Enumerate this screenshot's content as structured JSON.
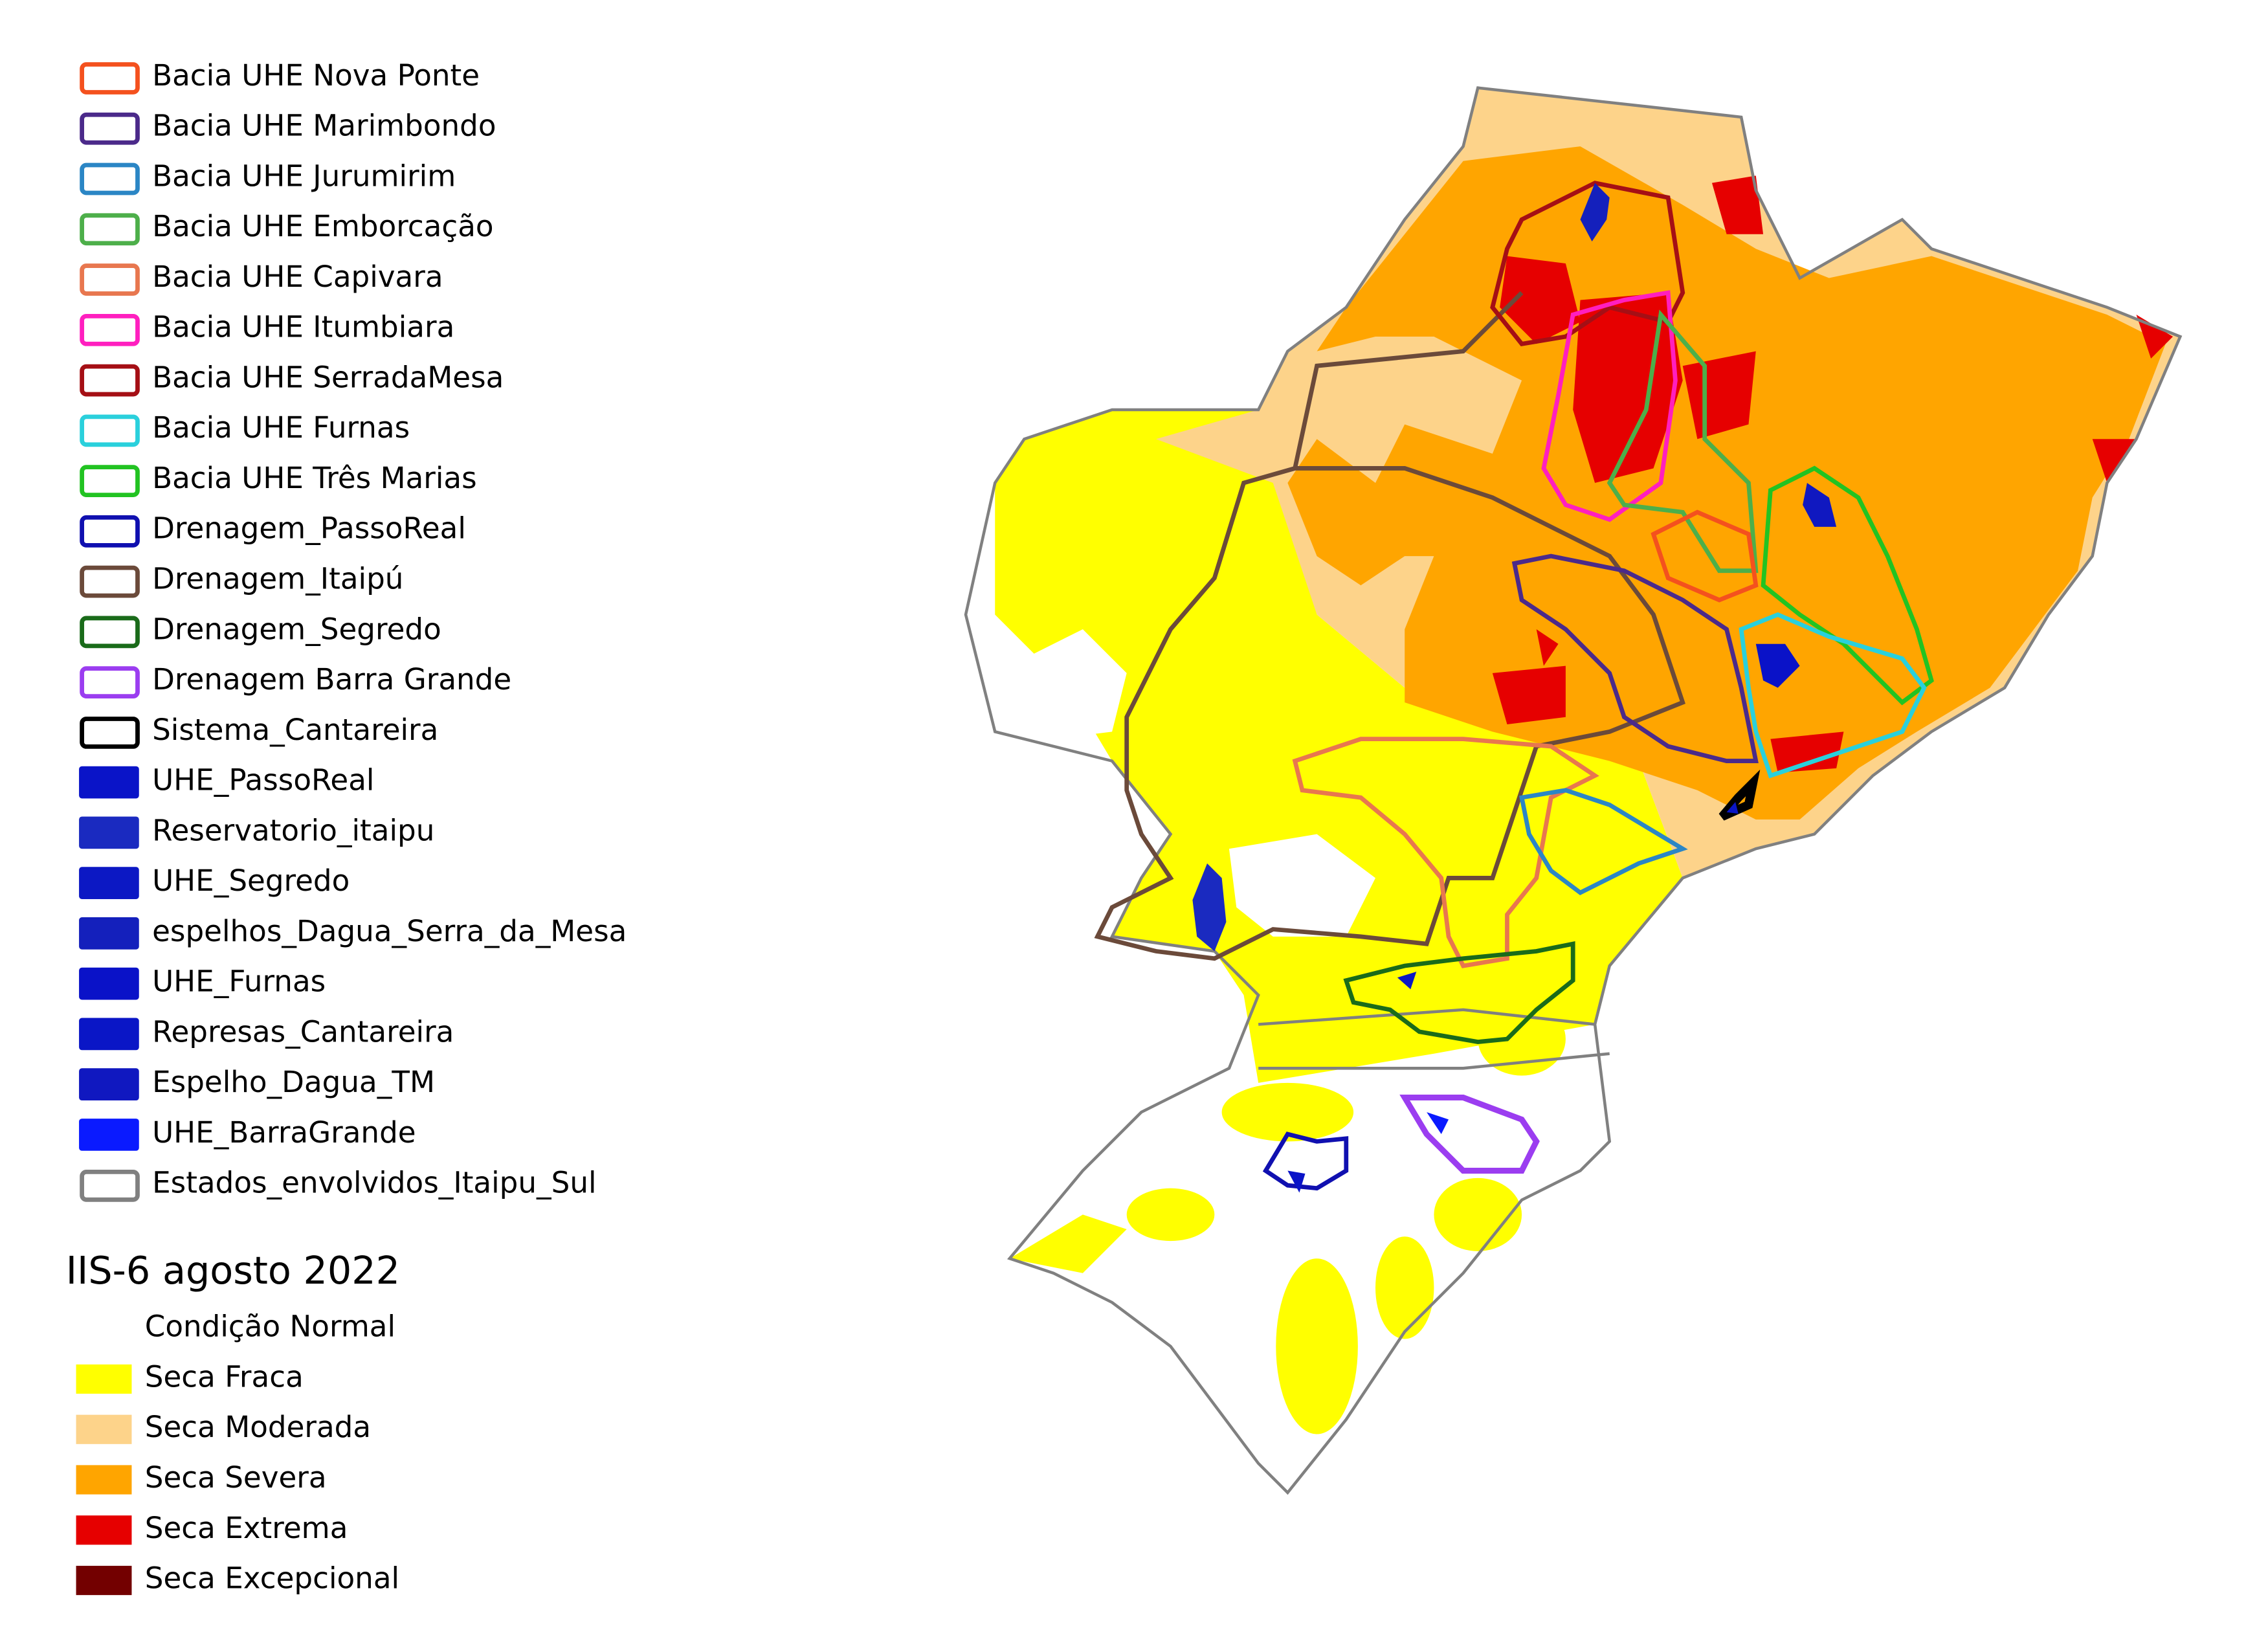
{
  "legend": {
    "items": [
      {
        "label": "Bacia UHE Nova Ponte",
        "color": "#f4511e",
        "style": "outline"
      },
      {
        "label": "Bacia UHE Marimbondo",
        "color": "#4b2a8a",
        "style": "outline"
      },
      {
        "label": "Bacia UHE Jurumirim",
        "color": "#2b86c5",
        "style": "outline"
      },
      {
        "label": "Bacia UHE Emborcação",
        "color": "#4daf4a",
        "style": "outline"
      },
      {
        "label": "Bacia UHE Capivara",
        "color": "#e8774f",
        "style": "outline"
      },
      {
        "label": "Bacia UHE Itumbiara",
        "color": "#ff1fbf",
        "style": "outline"
      },
      {
        "label": "Bacia UHE SerradaMesa",
        "color": "#a50f15",
        "style": "outline"
      },
      {
        "label": "Bacia UHE Furnas",
        "color": "#2ad0dc",
        "style": "outline"
      },
      {
        "label": "Bacia UHE Três Marias",
        "color": "#22c322",
        "style": "outline"
      },
      {
        "label": "Drenagem_PassoReal",
        "color": "#1010b0",
        "style": "outline"
      },
      {
        "label": "Drenagem_Itaipú",
        "color": "#6b4a3a",
        "style": "outline"
      },
      {
        "label": "Drenagem_Segredo",
        "color": "#1a6b1a",
        "style": "outline"
      },
      {
        "label": "Drenagem Barra Grande",
        "color": "#9b3df0",
        "style": "outline"
      },
      {
        "label": "Sistema_Cantareira",
        "color": "#000000",
        "style": "outline"
      },
      {
        "label": "UHE_PassoReal",
        "color": "#0a14c8",
        "style": "fill"
      },
      {
        "label": "Reservatorio_itaipu",
        "color": "#1a2ac0",
        "style": "fill"
      },
      {
        "label": "UHE_Segredo",
        "color": "#0c18c4",
        "style": "fill"
      },
      {
        "label": "espelhos_Dagua_Serra_da_Mesa",
        "color": "#1420bc",
        "style": "fill"
      },
      {
        "label": "UHE_Furnas",
        "color": "#0a12c8",
        "style": "fill"
      },
      {
        "label": "Represas_Cantareira",
        "color": "#0a16c6",
        "style": "fill"
      },
      {
        "label": "Espelho_Dagua_TM",
        "color": "#1018c0",
        "style": "fill"
      },
      {
        "label": "UHE_BarraGrande",
        "color": "#0a1aff",
        "style": "fill"
      },
      {
        "label": "Estados_envolvidos_Itaipu_Sul",
        "color": "#808080",
        "style": "outline"
      }
    ]
  },
  "drought_legend": {
    "title": "IIS-6 agosto 2022",
    "classes": [
      {
        "label": "Condição Normal",
        "color": "#ffffff"
      },
      {
        "label": "Seca Fraca",
        "color": "#ffff00"
      },
      {
        "label": "Seca Moderada",
        "color": "#fdd38a"
      },
      {
        "label": "Seca Severa",
        "color": "#ffa500"
      },
      {
        "label": "Seca Extrema",
        "color": "#e60000"
      },
      {
        "label": "Seca Excepcional",
        "color": "#730000"
      }
    ]
  }
}
